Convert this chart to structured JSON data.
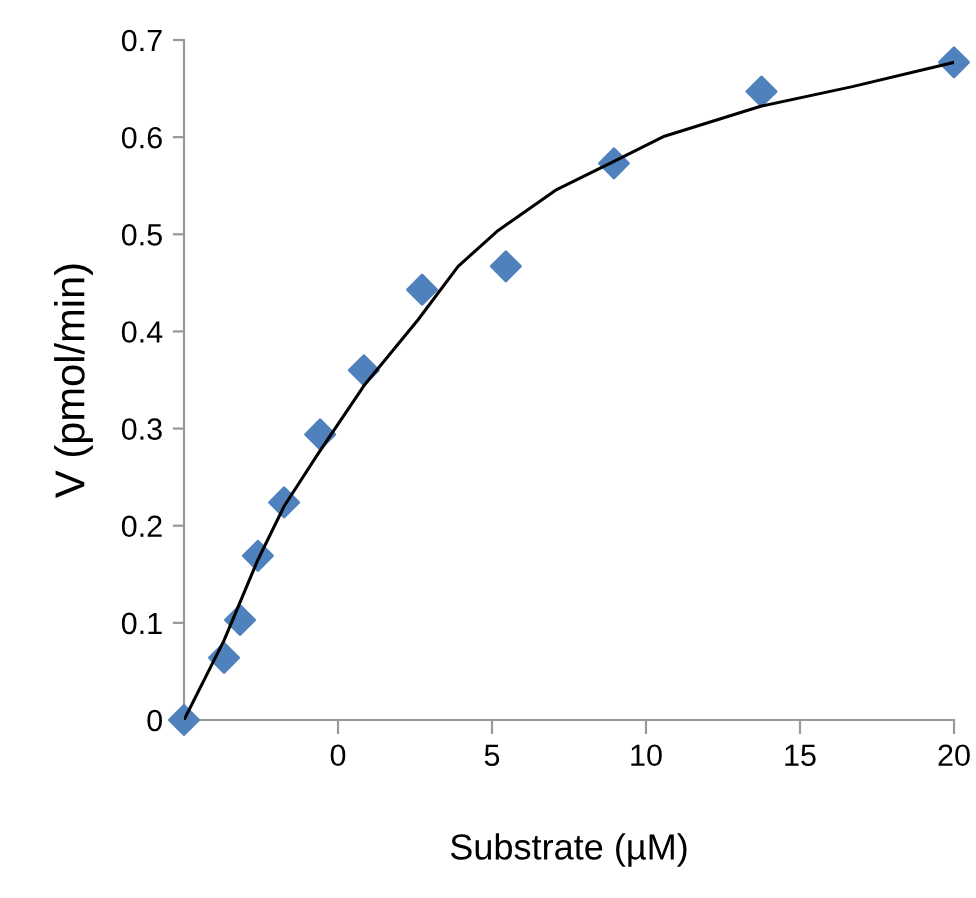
{
  "chart_data": {
    "type": "scatter",
    "xlabel": "Substrate (µM)",
    "ylabel": "V (pmol/min)",
    "series": [
      {
        "color": "#4f81bd",
        "marker": "diamond",
        "x": [
          -5,
          -3.7,
          -3.18,
          -2.6,
          -1.75,
          -0.58,
          0.84,
          2.73,
          5.45,
          8.96,
          13.75,
          20
        ],
        "values": [
          0,
          0.064,
          0.103,
          0.169,
          0.224,
          0.294,
          0.36,
          0.443,
          0.467,
          0.573,
          0.647,
          0.677
        ]
      },
      {
        "type": "line",
        "color": "#000000",
        "marker": "none",
        "line_style": "solid",
        "x": [
          -5,
          -3.7,
          -2.6,
          -1.75,
          -0.65,
          0.84,
          2.6,
          3.9,
          5.2,
          7.1,
          8.96,
          10.6,
          13.75,
          16.7,
          20
        ],
        "values": [
          0,
          0.082,
          0.165,
          0.22,
          0.274,
          0.344,
          0.412,
          0.467,
          0.504,
          0.546,
          0.575,
          0.601,
          0.632,
          0.652,
          0.677
        ]
      }
    ],
    "xlim": [
      -5,
      20
    ],
    "xticks": [
      0,
      5,
      10,
      15,
      20
    ],
    "ylim": [
      0,
      0.7
    ],
    "yticks": [
      0,
      0.1,
      0.2,
      0.3,
      0.4,
      0.5,
      0.6,
      0.7
    ],
    "grid": false,
    "legend": false
  }
}
